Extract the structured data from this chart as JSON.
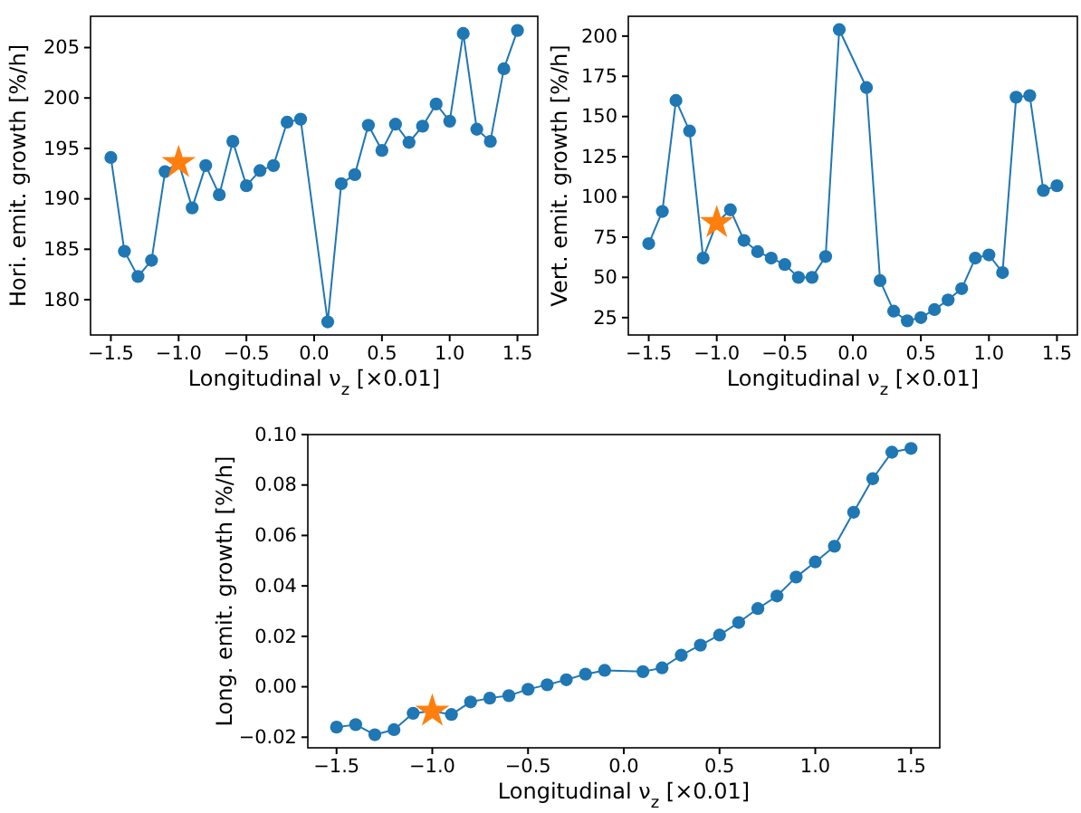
{
  "chart_data": [
    {
      "type": "line",
      "xlabel": "Longitudinal ν$_{z}$ [×0.01]",
      "ylabel": "Hori. emit. growth [%/h]",
      "xlim": [
        -1.65,
        1.65
      ],
      "ylim": [
        176.5,
        208.1
      ],
      "xticks": [
        {
          "value": -1.5,
          "label": "−1.5"
        },
        {
          "value": -1,
          "label": "−1.0"
        },
        {
          "value": -0.5,
          "label": "−0.5"
        },
        {
          "value": 0,
          "label": "0.0"
        },
        {
          "value": 0.5,
          "label": "0.5"
        },
        {
          "value": 1,
          "label": "1.0"
        },
        {
          "value": 1.5,
          "label": "1.5"
        }
      ],
      "yticks": [
        180,
        185,
        190,
        195,
        200,
        205
      ],
      "x": [
        -1.5,
        -1.4,
        -1.3,
        -1.2,
        -1.1,
        -1.0,
        -0.9,
        -0.8,
        -0.7,
        -0.6,
        -0.5,
        -0.4,
        -0.3,
        -0.2,
        -0.1,
        0.1,
        0.2,
        0.3,
        0.4,
        0.5,
        0.6,
        0.7,
        0.8,
        0.9,
        1.0,
        1.1,
        1.2,
        1.3,
        1.4,
        1.5
      ],
      "series": [
        {
          "type": "line",
          "marker": "circle",
          "color": "#1f77b4",
          "values": [
            194.1,
            184.8,
            182.3,
            183.9,
            192.7,
            193.6,
            189.1,
            193.3,
            190.4,
            195.7,
            191.3,
            192.8,
            193.3,
            197.6,
            197.9,
            177.8,
            191.5,
            192.4,
            197.3,
            194.8,
            197.4,
            195.6,
            197.2,
            199.4,
            197.7,
            206.4,
            196.9,
            195.7,
            202.9,
            206.7
          ]
        },
        {
          "type": "scatter",
          "marker": "star",
          "color": "#ff7f0e",
          "values": [
            null,
            null,
            null,
            null,
            null,
            193.6,
            null,
            null,
            null,
            null,
            null,
            null,
            null,
            null,
            null,
            null,
            null,
            null,
            null,
            null,
            null,
            null,
            null,
            null,
            null,
            null,
            null,
            null,
            null,
            null
          ]
        }
      ]
    },
    {
      "type": "line",
      "xlabel": "Longitudinal ν$_{z}$ [×0.01]",
      "ylabel": "Vert. emit. growth [%/h]",
      "xlim": [
        -1.65,
        1.65
      ],
      "ylim": [
        14.2,
        212.3
      ],
      "xticks": [
        {
          "value": -1.5,
          "label": "−1.5"
        },
        {
          "value": -1,
          "label": "−1.0"
        },
        {
          "value": -0.5,
          "label": "−0.5"
        },
        {
          "value": 0,
          "label": "0.0"
        },
        {
          "value": 0.5,
          "label": "0.5"
        },
        {
          "value": 1,
          "label": "1.0"
        },
        {
          "value": 1.5,
          "label": "1.5"
        }
      ],
      "yticks": [
        25,
        50,
        75,
        100,
        125,
        150,
        175,
        200
      ],
      "x": [
        -1.5,
        -1.4,
        -1.3,
        -1.2,
        -1.1,
        -1.0,
        -0.9,
        -0.8,
        -0.7,
        -0.6,
        -0.5,
        -0.4,
        -0.3,
        -0.2,
        -0.1,
        0.1,
        0.2,
        0.3,
        0.4,
        0.5,
        0.6,
        0.7,
        0.8,
        0.9,
        1.0,
        1.1,
        1.2,
        1.3,
        1.4,
        1.5
      ],
      "series": [
        {
          "type": "line",
          "marker": "circle",
          "color": "#1f77b4",
          "values": [
            71,
            91,
            160,
            141,
            62,
            84,
            92,
            73,
            66,
            62,
            58,
            50,
            50,
            63,
            204,
            168,
            48,
            29,
            23,
            25,
            30,
            36,
            43,
            62,
            64,
            53,
            162,
            163,
            104,
            107
          ]
        },
        {
          "type": "scatter",
          "marker": "star",
          "color": "#ff7f0e",
          "values": [
            null,
            null,
            null,
            null,
            null,
            84,
            null,
            null,
            null,
            null,
            null,
            null,
            null,
            null,
            null,
            null,
            null,
            null,
            null,
            null,
            null,
            null,
            null,
            null,
            null,
            null,
            null,
            null,
            null,
            null
          ]
        }
      ]
    },
    {
      "type": "line",
      "xlabel": "Longitudinal ν$_{z}$ [×0.01]",
      "ylabel": "Long. emit. growth [%/h]",
      "xlim": [
        -1.65,
        1.65
      ],
      "ylim": [
        -0.0242,
        0.1
      ],
      "xticks": [
        {
          "value": -1.5,
          "label": "−1.5"
        },
        {
          "value": -1,
          "label": "−1.0"
        },
        {
          "value": -0.5,
          "label": "−0.5"
        },
        {
          "value": 0,
          "label": "0.0"
        },
        {
          "value": 0.5,
          "label": "0.5"
        },
        {
          "value": 1,
          "label": "1.0"
        },
        {
          "value": 1.5,
          "label": "1.5"
        }
      ],
      "yticks": [
        {
          "value": -0.02,
          "label": "−0.02"
        },
        {
          "value": 0,
          "label": "0.00"
        },
        {
          "value": 0.02,
          "label": "0.02"
        },
        {
          "value": 0.04,
          "label": "0.04"
        },
        {
          "value": 0.06,
          "label": "0.06"
        },
        {
          "value": 0.08,
          "label": "0.08"
        },
        {
          "value": 0.1,
          "label": "0.10"
        }
      ],
      "x": [
        -1.5,
        -1.4,
        -1.3,
        -1.2,
        -1.1,
        -1.0,
        -0.9,
        -0.8,
        -0.7,
        -0.6,
        -0.5,
        -0.4,
        -0.3,
        -0.2,
        -0.1,
        0.1,
        0.2,
        0.3,
        0.4,
        0.5,
        0.6,
        0.7,
        0.8,
        0.9,
        1.0,
        1.1,
        1.2,
        1.3,
        1.4,
        1.5
      ],
      "series": [
        {
          "type": "line",
          "marker": "circle",
          "color": "#1f77b4",
          "values": [
            -0.016,
            -0.015,
            -0.019,
            -0.017,
            -0.0105,
            -0.0097,
            -0.011,
            -0.006,
            -0.0045,
            -0.0035,
            -0.001,
            0.0008,
            0.0028,
            0.005,
            0.0065,
            0.006,
            0.0075,
            0.0125,
            0.0165,
            0.0205,
            0.0255,
            0.031,
            0.036,
            0.0435,
            0.0495,
            0.0557,
            0.0692,
            0.0825,
            0.093,
            0.0945
          ]
        },
        {
          "type": "scatter",
          "marker": "star",
          "color": "#ff7f0e",
          "values": [
            null,
            null,
            null,
            null,
            null,
            -0.0097,
            null,
            null,
            null,
            null,
            null,
            null,
            null,
            null,
            null,
            null,
            null,
            null,
            null,
            null,
            null,
            null,
            null,
            null,
            null,
            null,
            null,
            null,
            null,
            null
          ]
        }
      ]
    }
  ]
}
